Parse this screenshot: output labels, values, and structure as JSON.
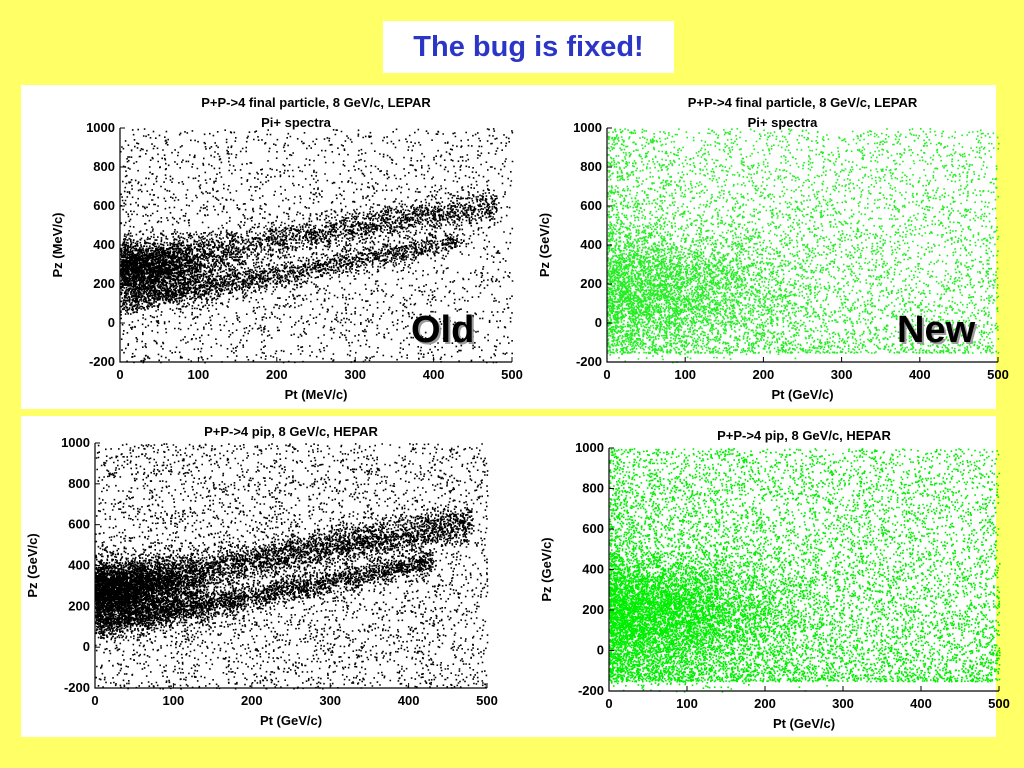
{
  "slide": {
    "title": "The bug is fixed!",
    "background_color": "#ffff66",
    "title_color": "#2b35c6"
  },
  "chart_data": [
    {
      "type": "scatter",
      "id": "top-left",
      "title": "P+P->4 final particle, 8 GeV/c, LEPAR",
      "subtitle": "Pi+ spectra",
      "xlabel": "Pt (MeV/c)",
      "ylabel": "Pz (MeV/c)",
      "xlim": [
        0,
        500
      ],
      "ylim": [
        -200,
        1000
      ],
      "xticks": [
        0,
        100,
        200,
        300,
        400,
        500
      ],
      "yticks": [
        -200,
        0,
        200,
        400,
        600,
        800,
        1000
      ],
      "color": "#000000",
      "label": "Old",
      "distribution": "banded-old"
    },
    {
      "type": "scatter",
      "id": "top-right",
      "title": "P+P->4 final particle, 8 GeV/c, LEPAR",
      "subtitle": "Pi+ spectra",
      "xlabel": "Pt (GeV/c)",
      "ylabel": "Pz (GeV/c)",
      "xlim": [
        0,
        500
      ],
      "ylim": [
        -200,
        1000
      ],
      "xticks": [
        0,
        100,
        200,
        300,
        400,
        500
      ],
      "yticks": [
        -200,
        0,
        200,
        400,
        600,
        800,
        1000
      ],
      "color": "#22ee22",
      "label": "New",
      "distribution": "smooth-new"
    },
    {
      "type": "scatter",
      "id": "bottom-left",
      "title": "P+P->4 pip, 8 GeV/c, HEPAR",
      "subtitle": "",
      "xlabel": "Pt (GeV/c)",
      "ylabel": "Pz (GeV/c)",
      "xlim": [
        0,
        500
      ],
      "ylim": [
        -200,
        1000
      ],
      "xticks": [
        0,
        100,
        200,
        300,
        400,
        500
      ],
      "yticks": [
        -200,
        0,
        200,
        400,
        600,
        800,
        1000
      ],
      "color": "#000000",
      "label": "",
      "distribution": "banded-old"
    },
    {
      "type": "scatter",
      "id": "bottom-right",
      "title": "P+P->4 pip, 8 GeV/c, HEPAR",
      "subtitle": "",
      "xlabel": "Pt (GeV/c)",
      "ylabel": "Pz (GeV/c)",
      "xlim": [
        0,
        500
      ],
      "ylim": [
        -200,
        1000
      ],
      "xticks": [
        0,
        100,
        200,
        300,
        400,
        500
      ],
      "yticks": [
        -200,
        0,
        200,
        400,
        600,
        800,
        1000
      ],
      "color": "#00ee00",
      "label": "",
      "distribution": "smooth-new"
    }
  ]
}
